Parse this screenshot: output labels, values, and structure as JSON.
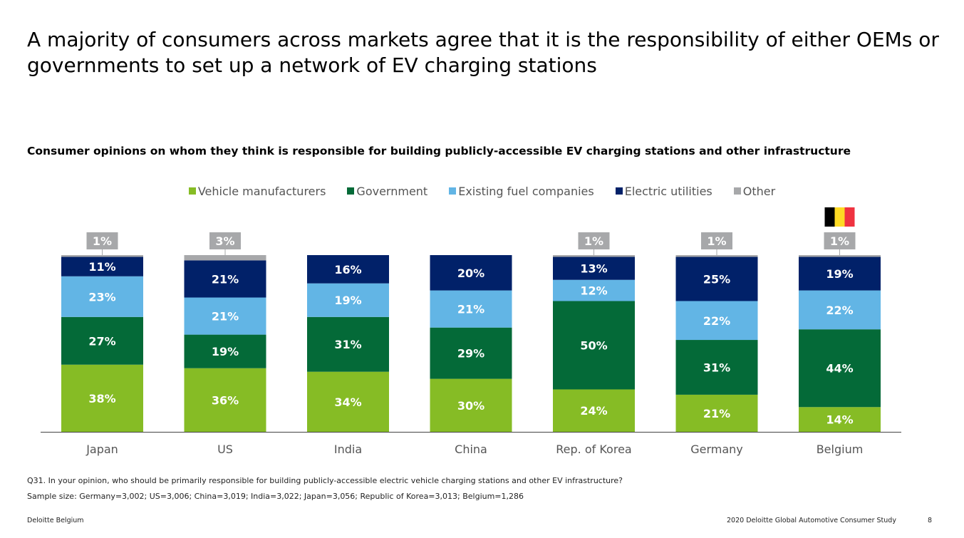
{
  "title": "A majority of consumers across markets agree that it is the responsibility of either OEMs or governments to set up a network of EV charging stations",
  "subtitle": "Consumer opinions on whom they think is responsible for building publicly-accessible EV charging stations and other infrastructure",
  "chart_data": {
    "type": "bar",
    "stacked": true,
    "categories": [
      "Japan",
      "US",
      "India",
      "China",
      "Rep. of Korea",
      "Germany",
      "Belgium"
    ],
    "series": [
      {
        "name": "Vehicle manufacturers",
        "color": "#86bc25",
        "label_color": "#ffffff",
        "values": [
          38,
          36,
          34,
          30,
          24,
          21,
          14
        ]
      },
      {
        "name": "Government",
        "color": "#046a38",
        "label_color": "#ffffff",
        "values": [
          27,
          19,
          31,
          29,
          50,
          31,
          44
        ]
      },
      {
        "name": "Existing fuel companies",
        "color": "#62b5e5",
        "label_color": "#ffffff",
        "values": [
          23,
          21,
          19,
          21,
          12,
          22,
          22
        ]
      },
      {
        "name": "Electric utilities",
        "color": "#012169",
        "label_color": "#ffffff",
        "values": [
          11,
          21,
          16,
          20,
          13,
          25,
          19
        ]
      },
      {
        "name": "Other",
        "color": "#a7a8aa",
        "label_color": "#ffffff",
        "values": [
          1,
          3,
          0,
          0,
          1,
          1,
          1
        ]
      }
    ],
    "other_labels": [
      "1%",
      "3%",
      "",
      "",
      "1%",
      "1%",
      "1%"
    ],
    "ylim": [
      0,
      100
    ],
    "legend_position": "top-center",
    "flag": {
      "category": "Belgium",
      "colors": [
        "#000000",
        "#fdda24",
        "#ef3340"
      ]
    }
  },
  "notes": {
    "question": "Q31. In your opinion, who should be primarily responsible for building publicly-accessible electric vehicle charging stations and other EV infrastructure?",
    "sample": "Sample size: Germany=3,002; US=3,006; China=3,019; India=3,022; Japan=3,056; Republic of Korea=3,013; Belgium=1,286"
  },
  "footer": {
    "left": "Deloitte Belgium",
    "right": "2020 Deloitte Global Automotive Consumer Study",
    "page": "8"
  }
}
